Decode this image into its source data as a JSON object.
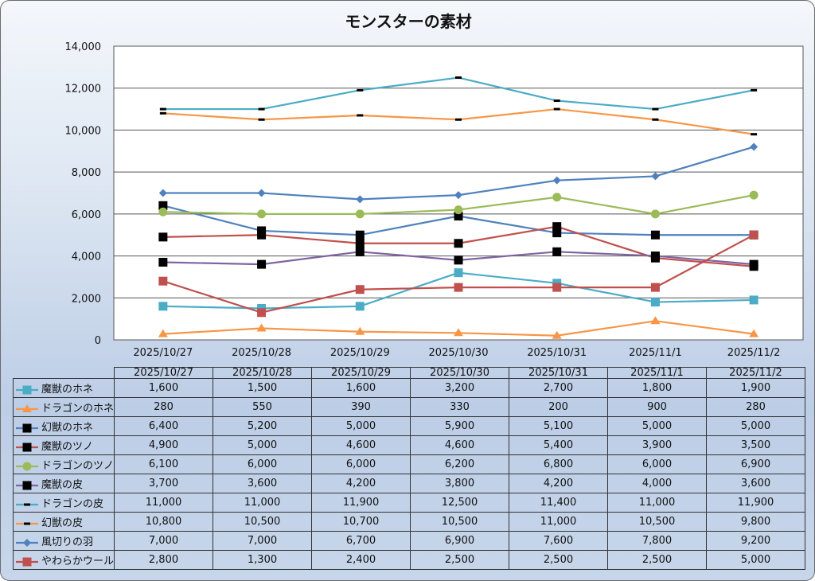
{
  "chart_data": {
    "type": "line",
    "title": "モンスターの素材",
    "xlabel": "",
    "ylabel": "",
    "ylim": [
      0,
      14000
    ],
    "yticks": [
      "0",
      "2,000",
      "4,000",
      "6,000",
      "8,000",
      "10,000",
      "12,000",
      "14,000"
    ],
    "ytick_values": [
      0,
      2000,
      4000,
      6000,
      8000,
      10000,
      12000,
      14000
    ],
    "grid": true,
    "legend": "data-table-bottom",
    "categories": [
      "2025/10/27",
      "2025/10/28",
      "2025/10/29",
      "2025/10/30",
      "2025/10/31",
      "2025/11/1",
      "2025/11/2"
    ],
    "series": [
      {
        "name": "魔獣のホネ",
        "color": "#4bacc6",
        "marker": "square",
        "marker_color": "#4bacc6",
        "values": [
          1600,
          1500,
          1600,
          3200,
          2700,
          1800,
          1900
        ],
        "labels": [
          "1,600",
          "1,500",
          "1,600",
          "3,200",
          "2,700",
          "1,800",
          "1,900"
        ]
      },
      {
        "name": "ドラゴンのホネ",
        "color": "#f79646",
        "marker": "triangle",
        "marker_color": "#f79646",
        "values": [
          280,
          550,
          390,
          330,
          200,
          900,
          280
        ],
        "labels": [
          "280",
          "550",
          "390",
          "330",
          "200",
          "900",
          "280"
        ]
      },
      {
        "name": "幻獣のホネ",
        "color": "#4f81bd",
        "marker": "square",
        "marker_color": "#000000",
        "values": [
          6400,
          5200,
          5000,
          5900,
          5100,
          5000,
          5000
        ],
        "labels": [
          "6,400",
          "5,200",
          "5,000",
          "5,900",
          "5,100",
          "5,000",
          "5,000"
        ]
      },
      {
        "name": "魔獣のツノ",
        "color": "#c0504d",
        "marker": "square",
        "marker_color": "#000000",
        "values": [
          4900,
          5000,
          4600,
          4600,
          5400,
          3900,
          3500
        ],
        "labels": [
          "4,900",
          "5,000",
          "4,600",
          "4,600",
          "5,400",
          "3,900",
          "3,500"
        ]
      },
      {
        "name": "ドラゴンのツノ",
        "color": "#9bbb59",
        "marker": "circle",
        "marker_color": "#9bbb59",
        "values": [
          6100,
          6000,
          6000,
          6200,
          6800,
          6000,
          6900
        ],
        "labels": [
          "6,100",
          "6,000",
          "6,000",
          "6,200",
          "6,800",
          "6,000",
          "6,900"
        ]
      },
      {
        "name": "魔獣の皮",
        "color": "#8064a2",
        "marker": "square",
        "marker_color": "#000000",
        "values": [
          3700,
          3600,
          4200,
          3800,
          4200,
          4000,
          3600
        ],
        "labels": [
          "3,700",
          "3,600",
          "4,200",
          "3,800",
          "4,200",
          "4,000",
          "3,600"
        ]
      },
      {
        "name": "ドラゴンの皮",
        "color": "#4bacc6",
        "marker": "dash",
        "marker_color": "#000000",
        "values": [
          11000,
          11000,
          11900,
          12500,
          11400,
          11000,
          11900
        ],
        "labels": [
          "11,000",
          "11,000",
          "11,900",
          "12,500",
          "11,400",
          "11,000",
          "11,900"
        ]
      },
      {
        "name": "幻獣の皮",
        "color": "#f79646",
        "marker": "dash",
        "marker_color": "#000000",
        "values": [
          10800,
          10500,
          10700,
          10500,
          11000,
          10500,
          9800
        ],
        "labels": [
          "10,800",
          "10,500",
          "10,700",
          "10,500",
          "11,000",
          "10,500",
          "9,800"
        ]
      },
      {
        "name": "風切りの羽",
        "color": "#4f81bd",
        "marker": "diamond",
        "marker_color": "#4f81bd",
        "values": [
          7000,
          7000,
          6700,
          6900,
          7600,
          7800,
          9200
        ],
        "labels": [
          "7,000",
          "7,000",
          "6,700",
          "6,900",
          "7,600",
          "7,800",
          "9,200"
        ]
      },
      {
        "name": "やわらかウール",
        "color": "#c0504d",
        "marker": "square",
        "marker_color": "#c0504d",
        "values": [
          2800,
          1300,
          2400,
          2500,
          2500,
          2500,
          5000
        ],
        "labels": [
          "2,800",
          "1,300",
          "2,400",
          "2,500",
          "2,500",
          "2,500",
          "5,000"
        ]
      }
    ]
  }
}
